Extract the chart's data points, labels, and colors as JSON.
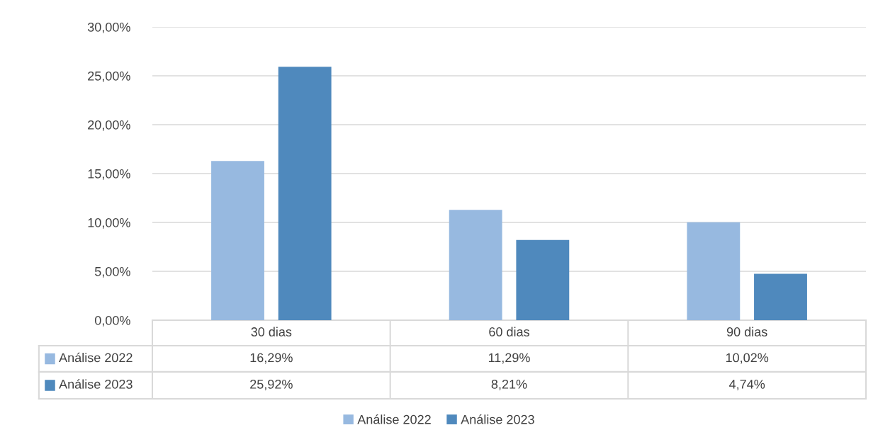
{
  "chart_data": {
    "type": "bar",
    "categories": [
      "30 dias",
      "60 dias",
      "90 dias"
    ],
    "series": [
      {
        "name": "Análise 2022",
        "color": "#97b9e0",
        "values": [
          16.29,
          11.29,
          10.02
        ],
        "value_labels": [
          "16,29%",
          "11,29%",
          "10,02%"
        ]
      },
      {
        "name": "Análise 2023",
        "color": "#4f89bd",
        "values": [
          25.92,
          8.21,
          4.74
        ],
        "value_labels": [
          "25,92%",
          "8,21%",
          "4,74%"
        ]
      }
    ],
    "ylim": [
      0,
      30
    ],
    "yticks": [
      {
        "value": 0,
        "label": "0,00%"
      },
      {
        "value": 5,
        "label": "5,00%"
      },
      {
        "value": 10,
        "label": "10,00%"
      },
      {
        "value": 15,
        "label": "15,00%"
      },
      {
        "value": 20,
        "label": "20,00%"
      },
      {
        "value": 25,
        "label": "25,00%"
      },
      {
        "value": 30,
        "label": "30,00%"
      }
    ],
    "grid": "y",
    "legend": "bottom"
  }
}
